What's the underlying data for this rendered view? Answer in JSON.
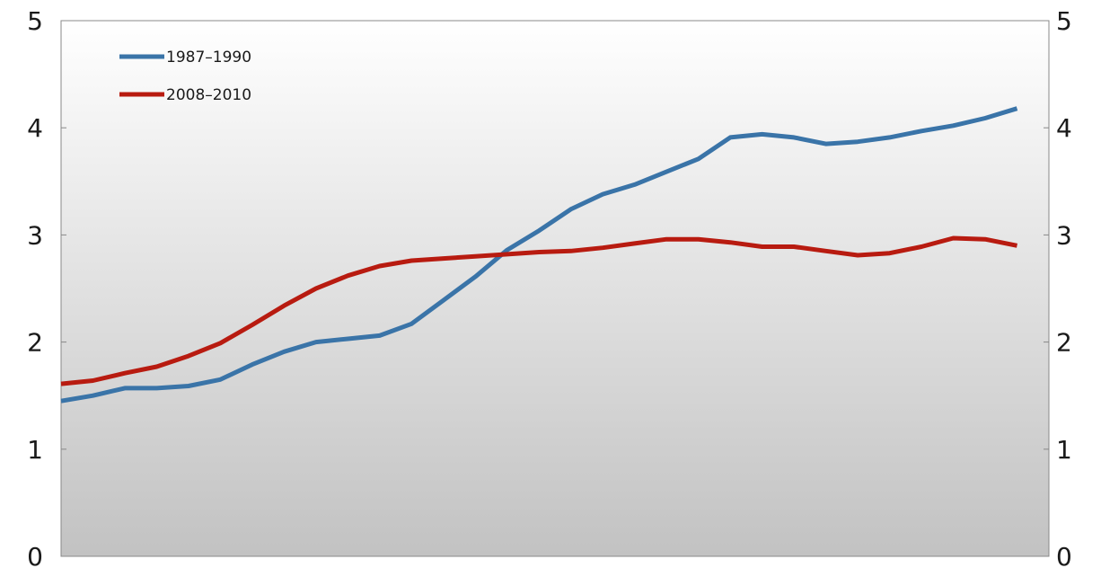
{
  "chart_data": {
    "type": "line",
    "title": "",
    "xlabel": "",
    "ylabel": "",
    "ylim": [
      0,
      5
    ],
    "yticks": [
      "0",
      "1",
      "2",
      "3",
      "4",
      "5"
    ],
    "y_axis_left": true,
    "y_axis_right": true,
    "grid": false,
    "legend_position": "top-left",
    "x": [
      1,
      2,
      3,
      4,
      5,
      6,
      7,
      8,
      9,
      10,
      11,
      12,
      13,
      14,
      15,
      16,
      17,
      18,
      19,
      20,
      21,
      22,
      23,
      24,
      25,
      26,
      27,
      28,
      29,
      30,
      31,
      32
    ],
    "series": [
      {
        "name": "1987–1990",
        "color": "#3a74a8",
        "values": [
          1.45,
          1.5,
          1.57,
          1.57,
          1.59,
          1.65,
          1.79,
          1.91,
          2.0,
          2.03,
          2.06,
          2.17,
          2.39,
          2.61,
          2.86,
          3.04,
          3.24,
          3.38,
          3.47,
          3.59,
          3.71,
          3.91,
          3.94,
          3.91,
          3.85,
          3.87,
          3.91,
          3.97,
          4.02,
          4.09,
          4.18,
          null
        ]
      },
      {
        "name": "2008–2010",
        "color": "#b81b10",
        "values": [
          1.61,
          1.64,
          1.71,
          1.77,
          1.87,
          1.99,
          2.16,
          2.34,
          2.5,
          2.62,
          2.71,
          2.76,
          2.78,
          2.8,
          2.82,
          2.84,
          2.85,
          2.88,
          2.92,
          2.96,
          2.96,
          2.93,
          2.89,
          2.89,
          2.85,
          2.81,
          2.83,
          2.89,
          2.97,
          2.96,
          2.9,
          null
        ]
      }
    ],
    "colors": {
      "plot_bg_top": "#ffffff",
      "plot_bg_bottom": "#c2c2c2",
      "axis": "#888888"
    }
  }
}
